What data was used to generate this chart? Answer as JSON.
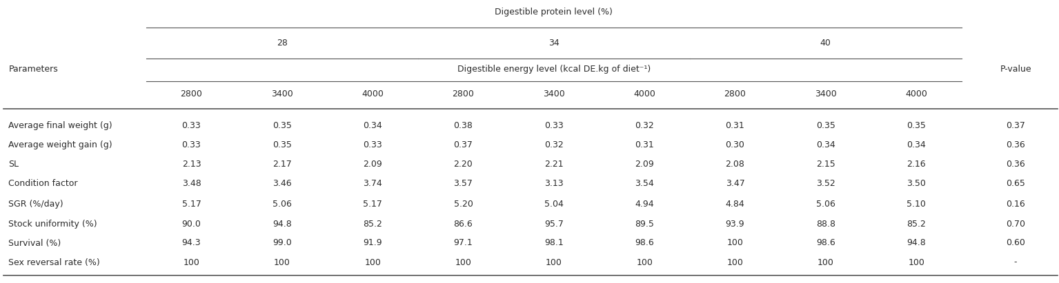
{
  "title_protein": "Digestible protein level (%)",
  "title_energy": "Digestible energy level (kcal DE.kg of diet⁻¹)",
  "protein_levels": [
    "28",
    "34",
    "40"
  ],
  "energy_levels": [
    "2800",
    "3400",
    "4000",
    "2800",
    "3400",
    "4000",
    "2800",
    "3400",
    "4000"
  ],
  "col_header_label": "Parameters",
  "pvalue_label": "P-value",
  "parameters": [
    "Average final weight (g)",
    "Average weight gain (g)",
    "SL",
    "Condition factor",
    "SGR (%/day)",
    "Stock uniformity (%)",
    "Survival (%)",
    "Sex reversal rate (%)"
  ],
  "data": [
    [
      "0.33",
      "0.35",
      "0.34",
      "0.38",
      "0.33",
      "0.32",
      "0.31",
      "0.35",
      "0.35",
      "0.37"
    ],
    [
      "0.33",
      "0.35",
      "0.33",
      "0.37",
      "0.32",
      "0.31",
      "0.30",
      "0.34",
      "0.34",
      "0.36"
    ],
    [
      "2.13",
      "2.17",
      "2.09",
      "2.20",
      "2.21",
      "2.09",
      "2.08",
      "2.15",
      "2.16",
      "0.36"
    ],
    [
      "3.48",
      "3.46",
      "3.74",
      "3.57",
      "3.13",
      "3.54",
      "3.47",
      "3.52",
      "3.50",
      "0.65"
    ],
    [
      "5.17",
      "5.06",
      "5.17",
      "5.20",
      "5.04",
      "4.94",
      "4.84",
      "5.06",
      "5.10",
      "0.16"
    ],
    [
      "90.0",
      "94.8",
      "85.2",
      "86.6",
      "95.7",
      "89.5",
      "93.9",
      "88.8",
      "85.2",
      "0.70"
    ],
    [
      "94.3",
      "99.0",
      "91.9",
      "97.1",
      "98.1",
      "98.6",
      "100",
      "98.6",
      "94.8",
      "0.60"
    ],
    [
      "100",
      "100",
      "100",
      "100",
      "100",
      "100",
      "100",
      "100",
      "100",
      "-"
    ]
  ],
  "bg_color": "#ffffff",
  "text_color": "#2b2b2b",
  "line_color": "#555555",
  "font_size": 9.0
}
